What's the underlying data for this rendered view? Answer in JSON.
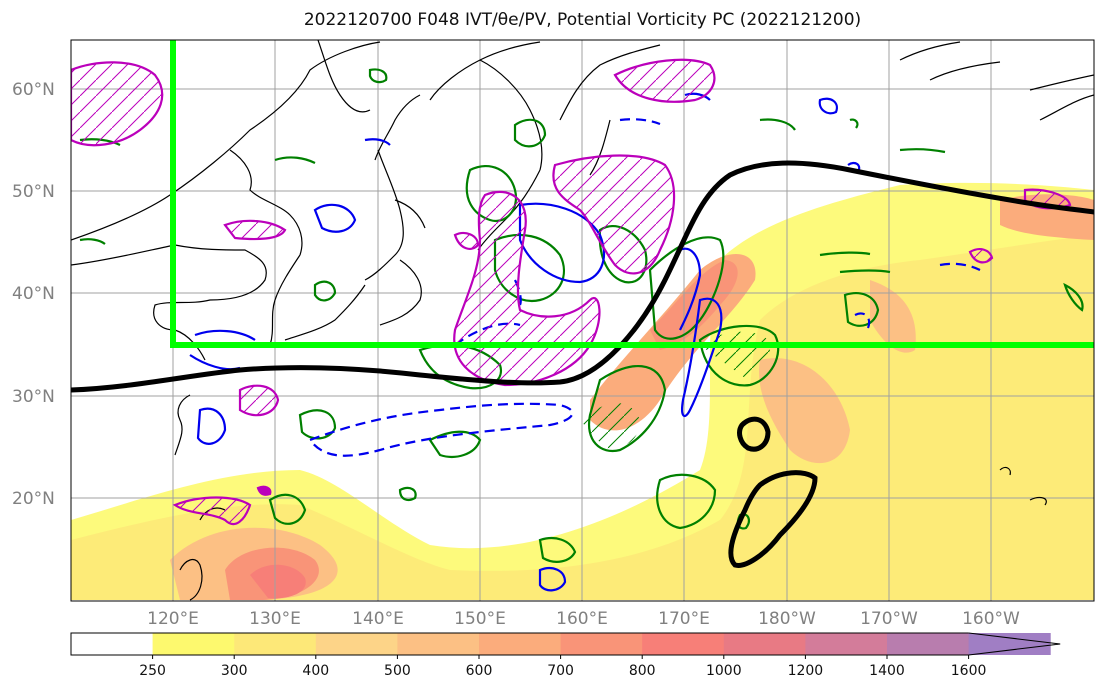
{
  "title": "2022120700 F048 IVT/θe/PV, Potential Vorticity PC (2022121200)",
  "axes": {
    "lat_labels": [
      "60°N",
      "50°N",
      "40°N",
      "30°N",
      "20°N"
    ],
    "lon_labels": [
      "120°E",
      "130°E",
      "140°E",
      "150°E",
      "160°E",
      "170°E",
      "180°W",
      "170°W",
      "160°W"
    ]
  },
  "colorbar": {
    "levels": [
      "250",
      "300",
      "400",
      "500",
      "600",
      "700",
      "800",
      "1000",
      "1200",
      "1400",
      "1600"
    ],
    "colors": [
      "#ffffff",
      "#fdf96e",
      "#fde878",
      "#fdd488",
      "#fcc084",
      "#fbac7c",
      "#f99478",
      "#f77f78",
      "#e87a84",
      "#d37c9a",
      "#b87dae",
      "#a07ec4"
    ]
  },
  "colors": {
    "box": "#00ff00",
    "front": "#000000",
    "pv_positive": "#bb00bb",
    "pv_negative": "#0000ee",
    "theta_e": "#008000"
  }
}
